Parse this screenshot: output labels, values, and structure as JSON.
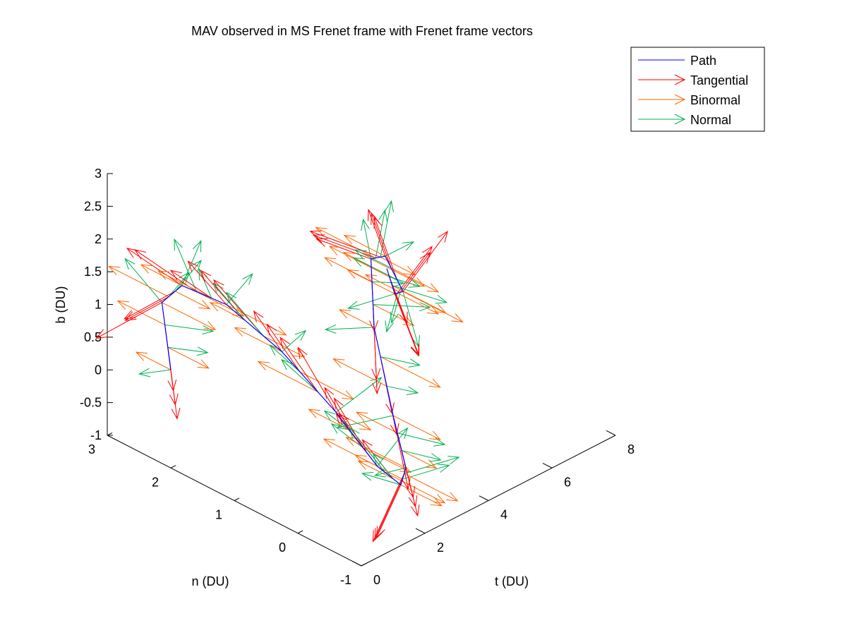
{
  "chart_data": {
    "type": "line",
    "title": "MAV observed in MS Frenet frame with Frenet frame vectors",
    "xlabel": "t (DU)",
    "ylabel": "n (DU)",
    "zlabel": "b (DU)",
    "xlim": [
      0,
      8
    ],
    "ylim": [
      -1,
      3
    ],
    "zlim": [
      -1,
      3
    ],
    "xticks": [
      "0",
      "2",
      "4",
      "6",
      "8"
    ],
    "yticks": [
      "-1",
      "0",
      "1",
      "2",
      "3"
    ],
    "zticks": [
      "-1",
      "-0.5",
      "0",
      "0.5",
      "1",
      "1.5",
      "2",
      "2.5",
      "3"
    ],
    "grid": false,
    "legend_position": "top-right",
    "series": [
      {
        "name": "Path",
        "color": "#0000ff"
      },
      {
        "name": "Tangential",
        "color": "#ff0000"
      },
      {
        "name": "Binormal",
        "color": "#ff6600"
      },
      {
        "name": "Normal",
        "color": "#00b050"
      }
    ],
    "path_points": [
      [
        0.0,
        2.0,
        0.5
      ],
      [
        0.3,
        2.29,
        1.31
      ],
      [
        0.55,
        2.1,
        1.6
      ],
      [
        0.85,
        1.55,
        1.51
      ],
      [
        1.2,
        0.85,
        1.05
      ],
      [
        1.6,
        0.2,
        0.35
      ],
      [
        2.0,
        -0.25,
        -0.35
      ],
      [
        2.4,
        -0.42,
        -0.65
      ],
      [
        2.8,
        -0.3,
        -0.55
      ],
      [
        3.2,
        0.1,
        -0.05
      ],
      [
        3.7,
        0.65,
        0.9
      ],
      [
        4.1,
        0.9,
        1.72
      ],
      [
        4.35,
        0.8,
        1.75
      ],
      [
        4.55,
        0.62,
        1.25
      ],
      [
        4.75,
        0.85,
        1.05
      ],
      [
        4.9,
        1.05,
        1.3
      ]
    ]
  }
}
